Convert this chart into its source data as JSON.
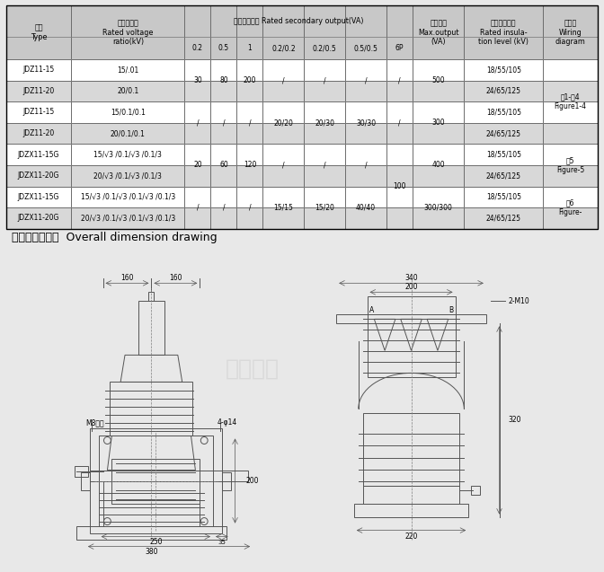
{
  "bg_color": "#e8e8e8",
  "table_bg": "#ffffff",
  "header_bg": "#d0d0d0",
  "alt_row_bg": "#e0e0e0",
  "title_section": "外形及安装尺寸  Overall dimension drawing",
  "table": {
    "headers": [
      [
        "型号\nType",
        "额定电压比\nRated voltage\nratio(kV)",
        "额定二次输出 Rated secondary output(VA)",
        "",
        "",
        "",
        "",
        "",
        "",
        "极限输出\nMax.output\n(VA)",
        "额定绝缘水平\nRated insula-\ntion level (kV)",
        "接线图\nWiring\ndiagram"
      ],
      [
        "",
        "",
        "0.2",
        "0.5",
        "1",
        "0.2/0.2",
        "0.2/0.5",
        "0.5/0.5",
        "6P",
        "",
        "",
        ""
      ]
    ],
    "rows": [
      [
        "JDZ11-15",
        "15/.01",
        "30",
        "80",
        "200",
        "/",
        "/",
        "/",
        "/",
        "500",
        "18/55/105",
        "图1-图4\nFigure1-4"
      ],
      [
        "JDZ11-20",
        "20/0.1",
        "",
        "",
        "",
        "",
        "",
        "",
        "",
        "",
        "24/65/125",
        ""
      ],
      [
        "JDZ11-15",
        "15/0.1/0.1",
        "/",
        "/",
        "/",
        "20/20",
        "20/30",
        "30/30",
        "/",
        "300",
        "18/55/105",
        ""
      ],
      [
        "JDZ11-20",
        "20/0.1/0.1",
        "",
        "",
        "",
        "",
        "",
        "",
        "",
        "",
        "24/65/125",
        ""
      ],
      [
        "JDZX11-15G",
        "15/√3 /0.1/√3 /0.1/3",
        "20",
        "60",
        "120",
        "/",
        "/",
        "/",
        "",
        "400",
        "18/55/105",
        "图5\nFigure-5"
      ],
      [
        "JDZX11-20G",
        "20/√3 /0.1/√3 /0.1/3",
        "",
        "",
        "",
        "",
        "",
        "",
        "",
        "",
        "24/65/125",
        ""
      ],
      [
        "JDZX11-15G",
        "15/√3 /0.1/√3 /0.1/√3 /0.1/3",
        "/",
        "/",
        "/",
        "15/15",
        "15/20",
        "40/40",
        "",
        "300/300",
        "18/55/105",
        "图6\nFigure-"
      ],
      [
        "JDZX11-20G",
        "20/√3 /0.1/√3 /0.1/√3 /0.1/3",
        "",
        "",
        "",
        "",
        "",
        "",
        "",
        "",
        "24/65/125",
        ""
      ]
    ]
  }
}
